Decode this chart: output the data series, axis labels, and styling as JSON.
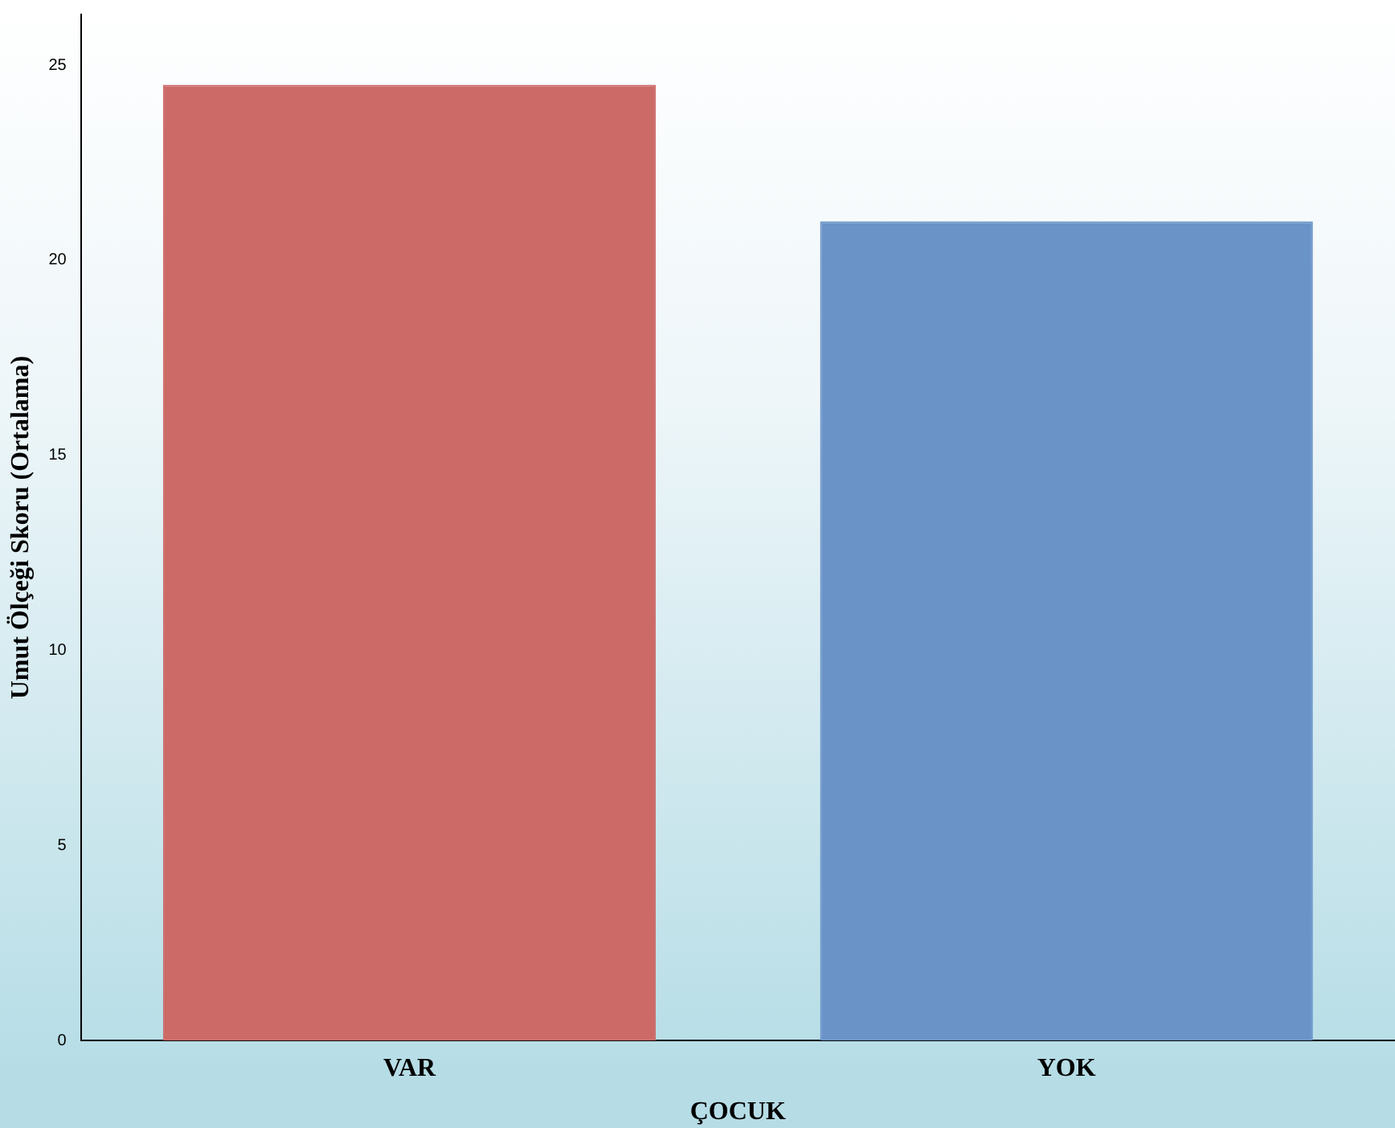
{
  "chart_data": {
    "type": "bar",
    "xlabel": "ÇOCUK",
    "ylabel": "Umut Ölçeği Skoru (Ortalama)",
    "categories": [
      "VAR",
      "YOK"
    ],
    "values": [
      24.5,
      21.0
    ],
    "colors": [
      "#cc6a68",
      "#6a93c8"
    ],
    "ylim": [
      0,
      26.3
    ],
    "yticks": [
      0,
      5,
      10,
      15,
      20,
      25
    ],
    "grid": false,
    "legend": false
  }
}
